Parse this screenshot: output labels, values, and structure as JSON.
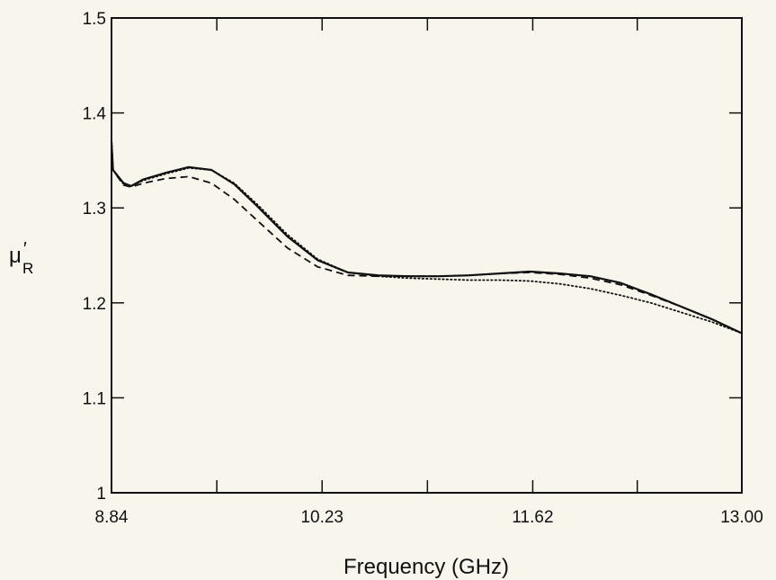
{
  "chart_data": {
    "type": "line",
    "title": "",
    "xlabel": "Frequency (GHz)",
    "ylabel_symbol": "μ",
    "ylabel_prime": "′",
    "ylabel_subscript": "R",
    "xlim": [
      8.84,
      13.0
    ],
    "ylim": [
      1.0,
      1.5
    ],
    "x_tick_labels": [
      "8.84",
      "10.23",
      "11.62",
      "13.00"
    ],
    "x_tick_values": [
      8.84,
      10.23,
      11.62,
      13.0
    ],
    "x_minor_ticks": [
      9.535,
      10.925,
      12.31
    ],
    "y_tick_labels": [
      "1",
      "1.1",
      "1.2",
      "1.3",
      "1.4",
      "1.5"
    ],
    "y_tick_values": [
      1.0,
      1.1,
      1.2,
      1.3,
      1.4,
      1.5
    ],
    "grid": false,
    "legend": "none",
    "series": [
      {
        "style": "solid",
        "x": [
          8.84,
          8.85,
          8.88,
          8.92,
          8.97,
          9.05,
          9.2,
          9.35,
          9.5,
          9.65,
          9.8,
          10.0,
          10.2,
          10.4,
          10.6,
          10.8,
          11.0,
          11.2,
          11.4,
          11.6,
          11.8,
          12.0,
          12.2,
          12.4,
          12.6,
          12.8,
          13.0
        ],
        "y": [
          1.37,
          1.34,
          1.334,
          1.326,
          1.323,
          1.33,
          1.337,
          1.343,
          1.34,
          1.325,
          1.302,
          1.27,
          1.245,
          1.232,
          1.229,
          1.228,
          1.228,
          1.229,
          1.231,
          1.233,
          1.231,
          1.228,
          1.221,
          1.209,
          1.196,
          1.183,
          1.168
        ]
      },
      {
        "style": "dotted",
        "x": [
          8.84,
          8.85,
          8.88,
          8.92,
          8.97,
          9.05,
          9.2,
          9.35,
          9.5,
          9.65,
          9.8,
          10.0,
          10.2,
          10.4,
          10.6,
          10.8,
          11.0,
          11.2,
          11.4,
          11.6,
          11.8,
          12.0,
          12.2,
          12.4,
          12.6,
          12.8,
          13.0
        ],
        "y": [
          1.37,
          1.34,
          1.333,
          1.325,
          1.323,
          1.329,
          1.336,
          1.342,
          1.34,
          1.326,
          1.304,
          1.272,
          1.246,
          1.232,
          1.228,
          1.226,
          1.225,
          1.224,
          1.224,
          1.223,
          1.22,
          1.215,
          1.208,
          1.2,
          1.19,
          1.18,
          1.168
        ]
      },
      {
        "style": "dashed",
        "x": [
          8.84,
          8.85,
          8.88,
          8.92,
          8.97,
          9.05,
          9.2,
          9.35,
          9.5,
          9.65,
          9.8,
          10.0,
          10.2,
          10.4,
          10.6,
          10.8,
          11.0,
          11.2,
          11.4,
          11.6,
          11.8,
          12.0,
          12.2,
          12.4,
          12.6,
          12.8,
          13.0
        ],
        "y": [
          1.37,
          1.34,
          1.333,
          1.324,
          1.322,
          1.326,
          1.331,
          1.333,
          1.326,
          1.309,
          1.287,
          1.258,
          1.238,
          1.229,
          1.228,
          1.228,
          1.228,
          1.229,
          1.231,
          1.232,
          1.23,
          1.226,
          1.219,
          1.208,
          1.196,
          1.183,
          1.168
        ]
      }
    ]
  }
}
